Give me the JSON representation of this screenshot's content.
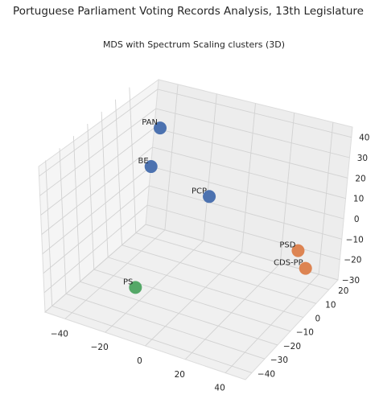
{
  "figure": {
    "title": "Portuguese Parliament Voting Records Analysis, 13th Legislature"
  },
  "chart_data": {
    "type": "scatter",
    "subtitle": "MDS with Spectrum Scaling clusters (3D)",
    "projection": "3d",
    "grid": true,
    "x_ticks": [
      "−40",
      "−20",
      "0",
      "20",
      "40"
    ],
    "y_ticks": [
      "−40",
      "−30",
      "−20",
      "−10",
      "0",
      "10",
      "20"
    ],
    "z_ticks": [
      "−30",
      "−20",
      "−10",
      "0",
      "10",
      "20",
      "30",
      "40"
    ],
    "xlim": [
      -50,
      50
    ],
    "ylim": [
      -45,
      27
    ],
    "zlim": [
      -30,
      45
    ],
    "colors": {
      "cluster_0": "#4c72b0",
      "cluster_1": "#dd8452",
      "cluster_2": "#55a868"
    },
    "points": [
      {
        "label": "PAN",
        "cluster": "cluster_0",
        "x": -28,
        "y": 10,
        "z": 38
      },
      {
        "label": "BE",
        "cluster": "cluster_0",
        "x": -32,
        "y": 8,
        "z": 18
      },
      {
        "label": "PCP",
        "cluster": "cluster_0",
        "x": -12,
        "y": 20,
        "z": 2
      },
      {
        "label": "PSD",
        "cluster": "cluster_1",
        "x": 34,
        "y": 17,
        "z": -8
      },
      {
        "label": "CDS-PP",
        "cluster": "cluster_1",
        "x": 44,
        "y": 8,
        "z": -8
      },
      {
        "label": "PS",
        "cluster": "cluster_2",
        "x": -11,
        "y": -35,
        "z": -10
      }
    ]
  }
}
